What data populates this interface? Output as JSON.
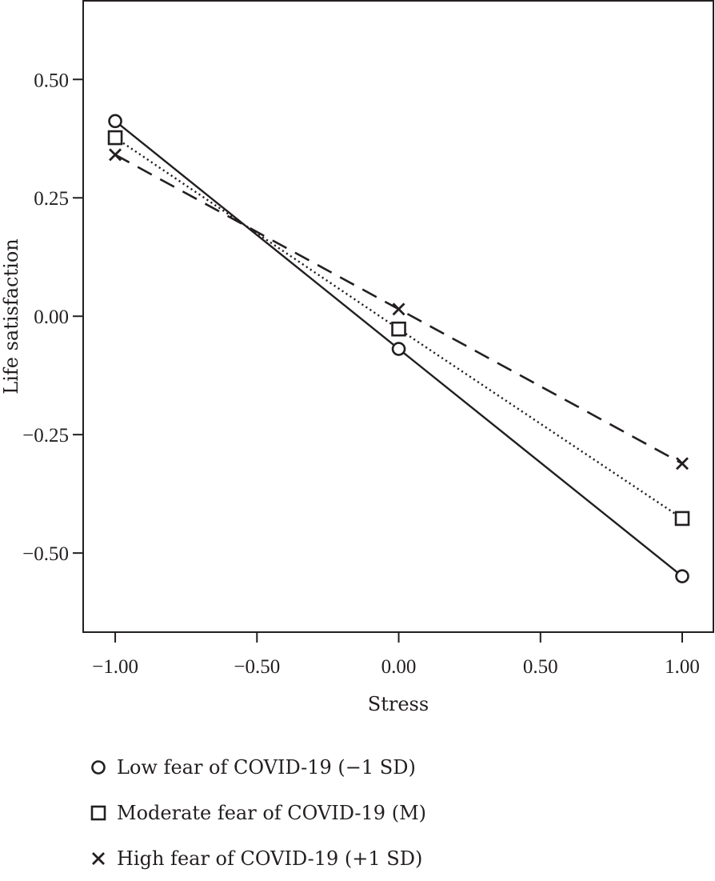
{
  "chart_data": {
    "type": "line",
    "title": "",
    "xlabel": "Stress",
    "ylabel": "Life satisfaction",
    "xlim": [
      -1.113,
      1.11
    ],
    "ylim": [
      -0.667,
      0.666
    ],
    "xticks": [
      -1.0,
      -0.5,
      0.0,
      0.5,
      1.0
    ],
    "xtick_labels": [
      "−1.00",
      "−0.50",
      "0.00",
      "0.50",
      "1.00"
    ],
    "yticks": [
      0.5,
      0.25,
      0.0,
      -0.25,
      -0.5
    ],
    "ytick_labels": [
      "0.50",
      "0.25",
      "0.00",
      "−0.25",
      "−0.50"
    ],
    "grid": false,
    "legend_position": "bottom-left",
    "x": [
      -1.0,
      0.0,
      1.0
    ],
    "series": [
      {
        "name": "Low fear of COVID-19 (−1 SD)",
        "marker": "circle",
        "line_style": "solid",
        "values": [
          0.412,
          -0.069,
          -0.549
        ],
        "color": "#231f20"
      },
      {
        "name": "Moderate fear of COVID-19 (M)",
        "marker": "square",
        "line_style": "dotted",
        "values": [
          0.377,
          -0.027,
          -0.427
        ],
        "color": "#231f20"
      },
      {
        "name": "High fear of COVID-19 (+1 SD)",
        "marker": "x",
        "line_style": "dashed",
        "values": [
          0.341,
          0.015,
          -0.311
        ],
        "color": "#231f20"
      }
    ]
  }
}
